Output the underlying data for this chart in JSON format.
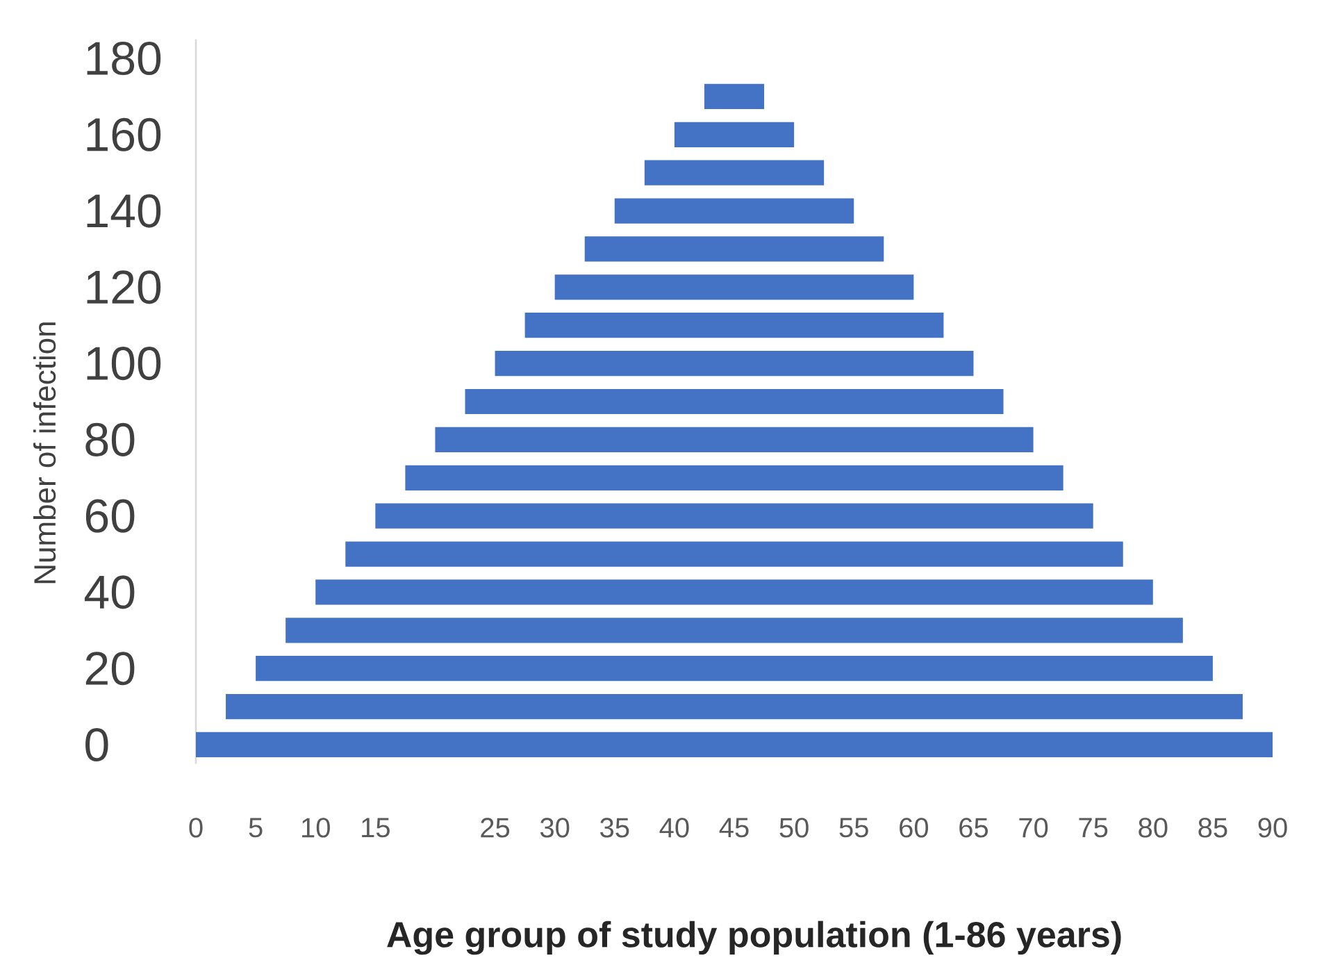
{
  "chart_data": {
    "type": "bar",
    "orientation": "horizontal",
    "xlabel": "Age group of study population (1-86 years)",
    "ylabel": "Number of infection",
    "categories": [
      "180",
      null,
      "160",
      null,
      "140",
      null,
      "120",
      null,
      "100",
      null,
      "80",
      null,
      "60",
      null,
      "40",
      null,
      "20",
      null,
      "0"
    ],
    "values": [
      null,
      5,
      10,
      15,
      20,
      25,
      30,
      35,
      40,
      45,
      50,
      55,
      60,
      65,
      70,
      75,
      80,
      85,
      90
    ],
    "base": [
      null,
      42.5,
      40,
      37.5,
      35,
      32.5,
      30,
      27.5,
      25,
      22.5,
      20,
      17.5,
      15,
      12.5,
      10,
      7.5,
      5,
      2.5,
      0
    ],
    "color": "#4472c4",
    "xlim": [
      0,
      90
    ],
    "xticks": [
      0,
      5,
      10,
      15,
      25,
      30,
      35,
      40,
      45,
      50,
      55,
      60,
      65,
      70,
      75,
      80,
      85,
      90
    ]
  }
}
